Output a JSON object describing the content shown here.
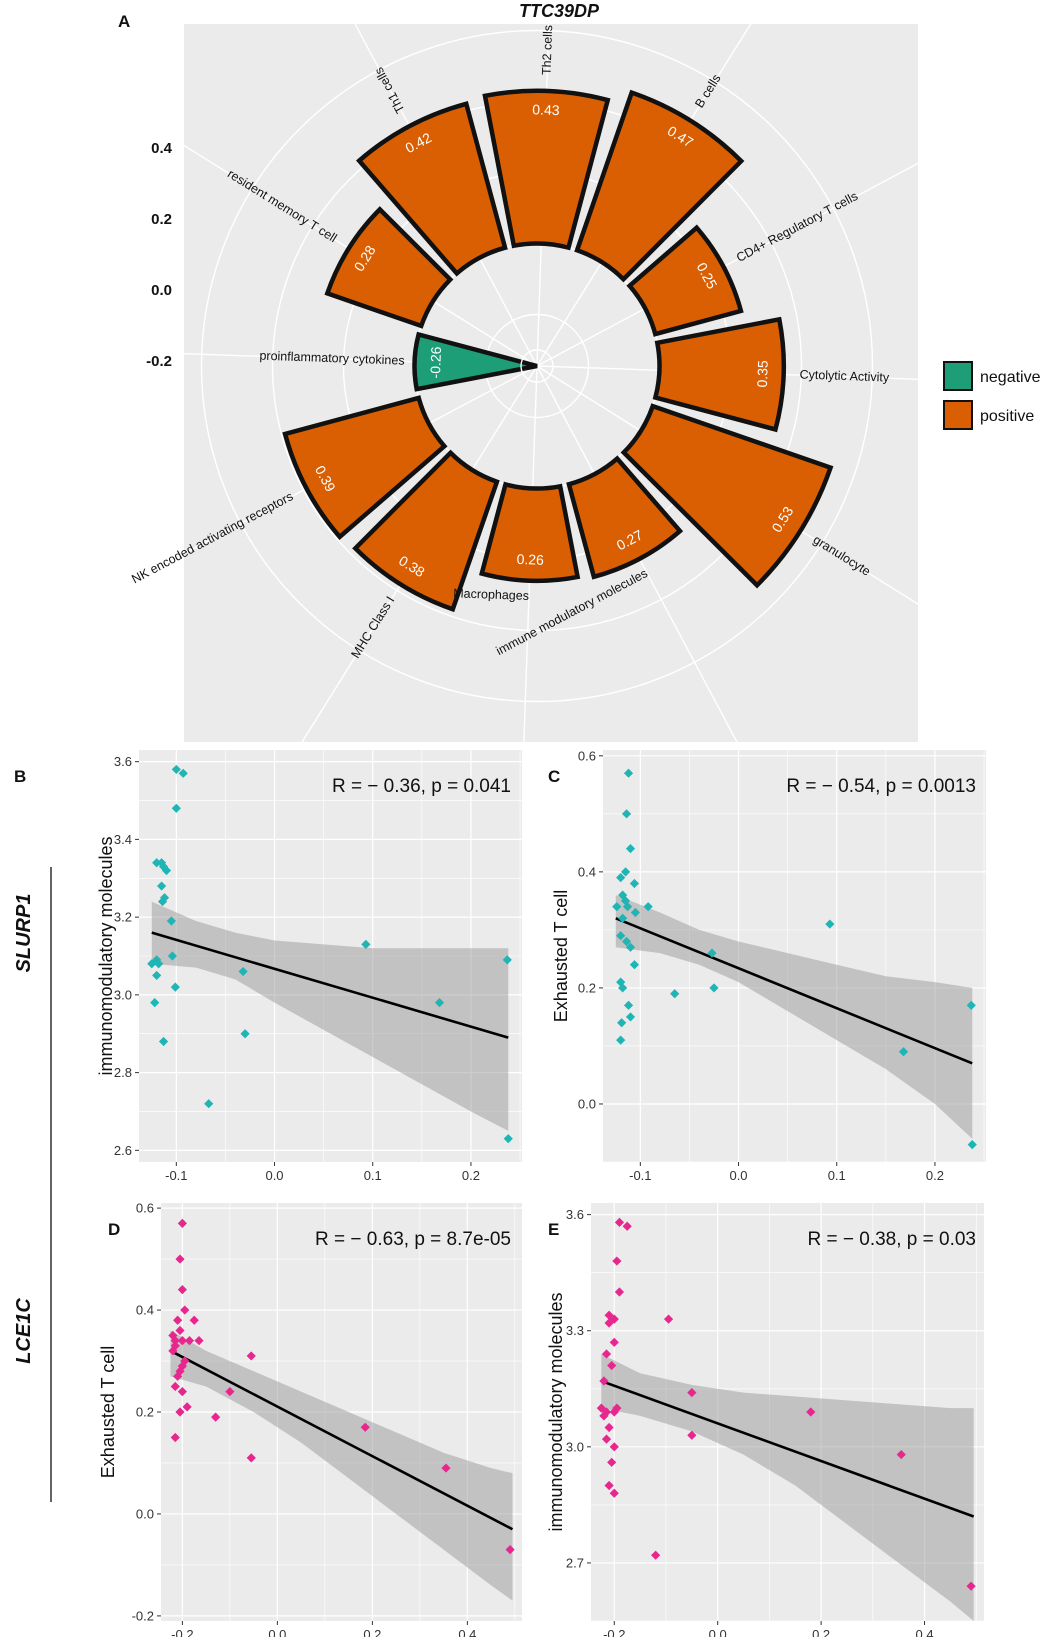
{
  "figure": {
    "panel_a": {
      "letter": "A",
      "title": "TTC39DP",
      "radial_ticks": [
        "0.4",
        "0.2",
        "0.0",
        "-0.2"
      ],
      "legend": [
        {
          "label": "negative",
          "color": "#1d9e76"
        },
        {
          "label": "positive",
          "color": "#d95f02"
        }
      ]
    },
    "row_labels": [
      "SLURP1",
      "LCE1C"
    ],
    "colors": {
      "cyan": "#1fb5b5",
      "pink": "#e8278e",
      "panel_bg": "#ebebeb",
      "band": "#b0b0b0",
      "line": "#000000"
    }
  },
  "chart_data": [
    {
      "panel": "A",
      "type": "bar",
      "coord": "polar",
      "title": "TTC39DP",
      "rlim": [
        -0.3,
        0.6
      ],
      "categories": [
        "Th2 cells",
        "B cells",
        "CD4+ Regulatory T cells",
        "Cytolytic Activity",
        "granulocyte",
        "immune modulatory molecules",
        "Macrophages",
        "MHC Class I",
        "NK encoded activating receptors",
        "proinflammatory cytokines",
        "resident memory T cell",
        "Th1 cells"
      ],
      "values": [
        0.43,
        0.47,
        0.25,
        0.35,
        0.53,
        0.27,
        0.26,
        0.38,
        0.39,
        -0.26,
        0.28,
        0.42
      ],
      "value_labels": [
        "0.43",
        "0.47",
        "0.25",
        "0.35",
        "0.53",
        "0.27",
        "0.26",
        "0.38",
        "0.39",
        "-0.26",
        "0.28",
        "0.42"
      ],
      "groups": [
        "positive",
        "positive",
        "positive",
        "positive",
        "positive",
        "positive",
        "positive",
        "positive",
        "positive",
        "negative",
        "positive",
        "positive"
      ]
    },
    {
      "panel": "B",
      "type": "scatter",
      "xlabel": "",
      "ylabel": "immunomodulatory molecules",
      "xlim": [
        -0.138,
        0.252
      ],
      "ylim": [
        2.57,
        3.63
      ],
      "xticks": [
        -0.1,
        0.0,
        0.1,
        0.2
      ],
      "xtick_labels": [
        "-0.1",
        "0.0",
        "0.1",
        "0.2"
      ],
      "yticks": [
        2.6,
        2.8,
        3.0,
        3.2,
        3.4,
        3.6
      ],
      "ytick_labels": [
        "2.6",
        "2.8",
        "3.0",
        "3.2",
        "3.4",
        "3.6"
      ],
      "annotation": "R = − 0.36, p = 0.041",
      "x": [
        -0.1,
        -0.093,
        -0.1,
        -0.115,
        -0.12,
        -0.113,
        -0.11,
        -0.115,
        -0.112,
        -0.114,
        -0.105,
        -0.104,
        -0.12,
        -0.118,
        -0.125,
        -0.12,
        -0.122,
        -0.101,
        -0.113,
        -0.067,
        -0.032,
        -0.03,
        0.093,
        0.168,
        0.237,
        0.238
      ],
      "y": [
        3.58,
        3.57,
        3.48,
        3.34,
        3.34,
        3.33,
        3.32,
        3.28,
        3.25,
        3.24,
        3.19,
        3.1,
        3.09,
        3.08,
        3.08,
        3.05,
        2.98,
        3.02,
        2.88,
        2.72,
        3.06,
        2.9,
        3.13,
        2.98,
        3.09,
        2.63
      ],
      "fit": {
        "x": [
          -0.125,
          0.238
        ],
        "y": [
          3.16,
          2.89
        ]
      },
      "band": {
        "x": [
          -0.125,
          -0.08,
          -0.04,
          0.0,
          0.05,
          0.1,
          0.15,
          0.2,
          0.238
        ],
        "upper": [
          3.24,
          3.19,
          3.16,
          3.14,
          3.13,
          3.12,
          3.12,
          3.12,
          3.12
        ],
        "lower": [
          3.08,
          3.07,
          3.04,
          2.98,
          2.91,
          2.84,
          2.77,
          2.7,
          2.65
        ]
      },
      "color": "#1fb5b5"
    },
    {
      "panel": "C",
      "type": "scatter",
      "xlabel": "",
      "ylabel": "Exhausted T cell",
      "xlim": [
        -0.138,
        0.252
      ],
      "ylim": [
        -0.1,
        0.61
      ],
      "xticks": [
        -0.1,
        0.0,
        0.1,
        0.2
      ],
      "xtick_labels": [
        "-0.1",
        "0.0",
        "0.1",
        "0.2"
      ],
      "yticks": [
        0.0,
        0.2,
        0.4,
        0.6
      ],
      "ytick_labels": [
        "0.0",
        "0.2",
        "0.4",
        "0.6"
      ],
      "annotation": "R = − 0.54, p = 0.0013",
      "x": [
        -0.112,
        -0.114,
        -0.11,
        -0.115,
        -0.12,
        -0.106,
        -0.118,
        -0.115,
        -0.124,
        -0.113,
        -0.105,
        -0.092,
        -0.118,
        -0.12,
        -0.114,
        -0.11,
        -0.106,
        -0.12,
        -0.118,
        -0.112,
        -0.11,
        -0.119,
        -0.12,
        -0.065,
        -0.027,
        -0.025,
        0.093,
        0.168,
        0.237,
        0.238
      ],
      "y": [
        0.57,
        0.5,
        0.44,
        0.4,
        0.39,
        0.38,
        0.36,
        0.35,
        0.34,
        0.34,
        0.33,
        0.34,
        0.32,
        0.29,
        0.28,
        0.27,
        0.24,
        0.21,
        0.2,
        0.17,
        0.15,
        0.14,
        0.11,
        0.19,
        0.26,
        0.2,
        0.31,
        0.09,
        0.17,
        -0.07
      ],
      "fit": {
        "x": [
          -0.125,
          0.238
        ],
        "y": [
          0.32,
          0.07
        ]
      },
      "band": {
        "x": [
          -0.125,
          -0.08,
          -0.04,
          0.0,
          0.05,
          0.1,
          0.15,
          0.2,
          0.238
        ],
        "upper": [
          0.36,
          0.33,
          0.3,
          0.28,
          0.26,
          0.24,
          0.22,
          0.21,
          0.2
        ],
        "lower": [
          0.27,
          0.26,
          0.24,
          0.21,
          0.16,
          0.11,
          0.06,
          0.0,
          -0.06
        ]
      },
      "color": "#1fb5b5"
    },
    {
      "panel": "D",
      "type": "scatter",
      "xlabel": "",
      "ylabel": "Exhausted T cell",
      "xlim": [
        -0.245,
        0.515
      ],
      "ylim": [
        -0.21,
        0.61
      ],
      "xticks": [
        -0.2,
        0.0,
        0.2,
        0.4
      ],
      "xtick_labels": [
        "-0.2",
        "0.0",
        "0.2",
        "0.4"
      ],
      "yticks": [
        -0.2,
        0.0,
        0.2,
        0.4,
        0.6
      ],
      "ytick_labels": [
        "-0.2",
        "0.0",
        "0.2",
        "0.4",
        "0.6"
      ],
      "annotation": "R = − 0.63, p = 8.7e-05",
      "x": [
        -0.2,
        -0.205,
        -0.2,
        -0.195,
        -0.21,
        -0.205,
        -0.22,
        -0.175,
        -0.215,
        -0.2,
        -0.215,
        -0.185,
        -0.165,
        -0.22,
        -0.195,
        -0.2,
        -0.205,
        -0.21,
        -0.215,
        -0.2,
        -0.19,
        -0.205,
        -0.215,
        -0.13,
        -0.1,
        -0.055,
        -0.055,
        0.185,
        0.355,
        0.49
      ],
      "y": [
        0.57,
        0.5,
        0.44,
        0.4,
        0.38,
        0.36,
        0.35,
        0.38,
        0.34,
        0.34,
        0.33,
        0.34,
        0.34,
        0.32,
        0.3,
        0.29,
        0.28,
        0.27,
        0.25,
        0.24,
        0.21,
        0.2,
        0.15,
        0.19,
        0.24,
        0.31,
        0.11,
        0.17,
        0.09,
        -0.07
      ],
      "fit": {
        "x": [
          -0.225,
          0.495
        ],
        "y": [
          0.32,
          -0.03
        ]
      },
      "band": {
        "x": [
          -0.225,
          -0.15,
          -0.05,
          0.05,
          0.15,
          0.25,
          0.35,
          0.45,
          0.495
        ],
        "upper": [
          0.36,
          0.32,
          0.28,
          0.24,
          0.2,
          0.16,
          0.12,
          0.09,
          0.08
        ],
        "lower": [
          0.27,
          0.25,
          0.2,
          0.14,
          0.07,
          0.0,
          -0.07,
          -0.14,
          -0.17
        ]
      },
      "color": "#e8278e"
    },
    {
      "panel": "E",
      "type": "scatter",
      "xlabel": "",
      "ylabel": "immunomodulatory molecules",
      "xlim": [
        -0.245,
        0.515
      ],
      "ylim": [
        2.55,
        3.63
      ],
      "xticks": [
        -0.2,
        0.0,
        0.2,
        0.4
      ],
      "xtick_labels": [
        "-0.2",
        "0.0",
        "0.2",
        "0.4"
      ],
      "yticks": [
        2.7,
        3.0,
        3.3,
        3.6
      ],
      "ytick_labels": [
        "2.7",
        "3.0",
        "3.3",
        "3.6"
      ],
      "annotation": "R = − 0.38, p = 0.03",
      "x": [
        -0.19,
        -0.175,
        -0.195,
        -0.19,
        -0.21,
        -0.2,
        -0.21,
        -0.2,
        -0.215,
        -0.205,
        -0.22,
        -0.225,
        -0.215,
        -0.2,
        -0.195,
        -0.21,
        -0.215,
        -0.2,
        -0.205,
        -0.21,
        -0.2,
        -0.22,
        -0.12,
        -0.095,
        -0.05,
        -0.05,
        0.18,
        0.355,
        0.49
      ],
      "y": [
        3.58,
        3.57,
        3.48,
        3.4,
        3.34,
        3.33,
        3.32,
        3.27,
        3.24,
        3.21,
        3.17,
        3.1,
        3.09,
        3.09,
        3.1,
        3.05,
        3.02,
        3.0,
        2.96,
        2.9,
        2.88,
        3.08,
        2.72,
        3.33,
        3.14,
        3.03,
        3.09,
        2.98,
        2.64
      ],
      "fit": {
        "x": [
          -0.225,
          0.495
        ],
        "y": [
          3.17,
          2.82
        ]
      },
      "band": {
        "x": [
          -0.225,
          -0.15,
          -0.05,
          0.05,
          0.15,
          0.25,
          0.35,
          0.45,
          0.495
        ],
        "upper": [
          3.24,
          3.19,
          3.16,
          3.14,
          3.13,
          3.12,
          3.11,
          3.1,
          3.1
        ],
        "lower": [
          3.1,
          3.08,
          3.04,
          2.98,
          2.9,
          2.8,
          2.7,
          2.6,
          2.55
        ]
      },
      "color": "#e8278e"
    }
  ]
}
